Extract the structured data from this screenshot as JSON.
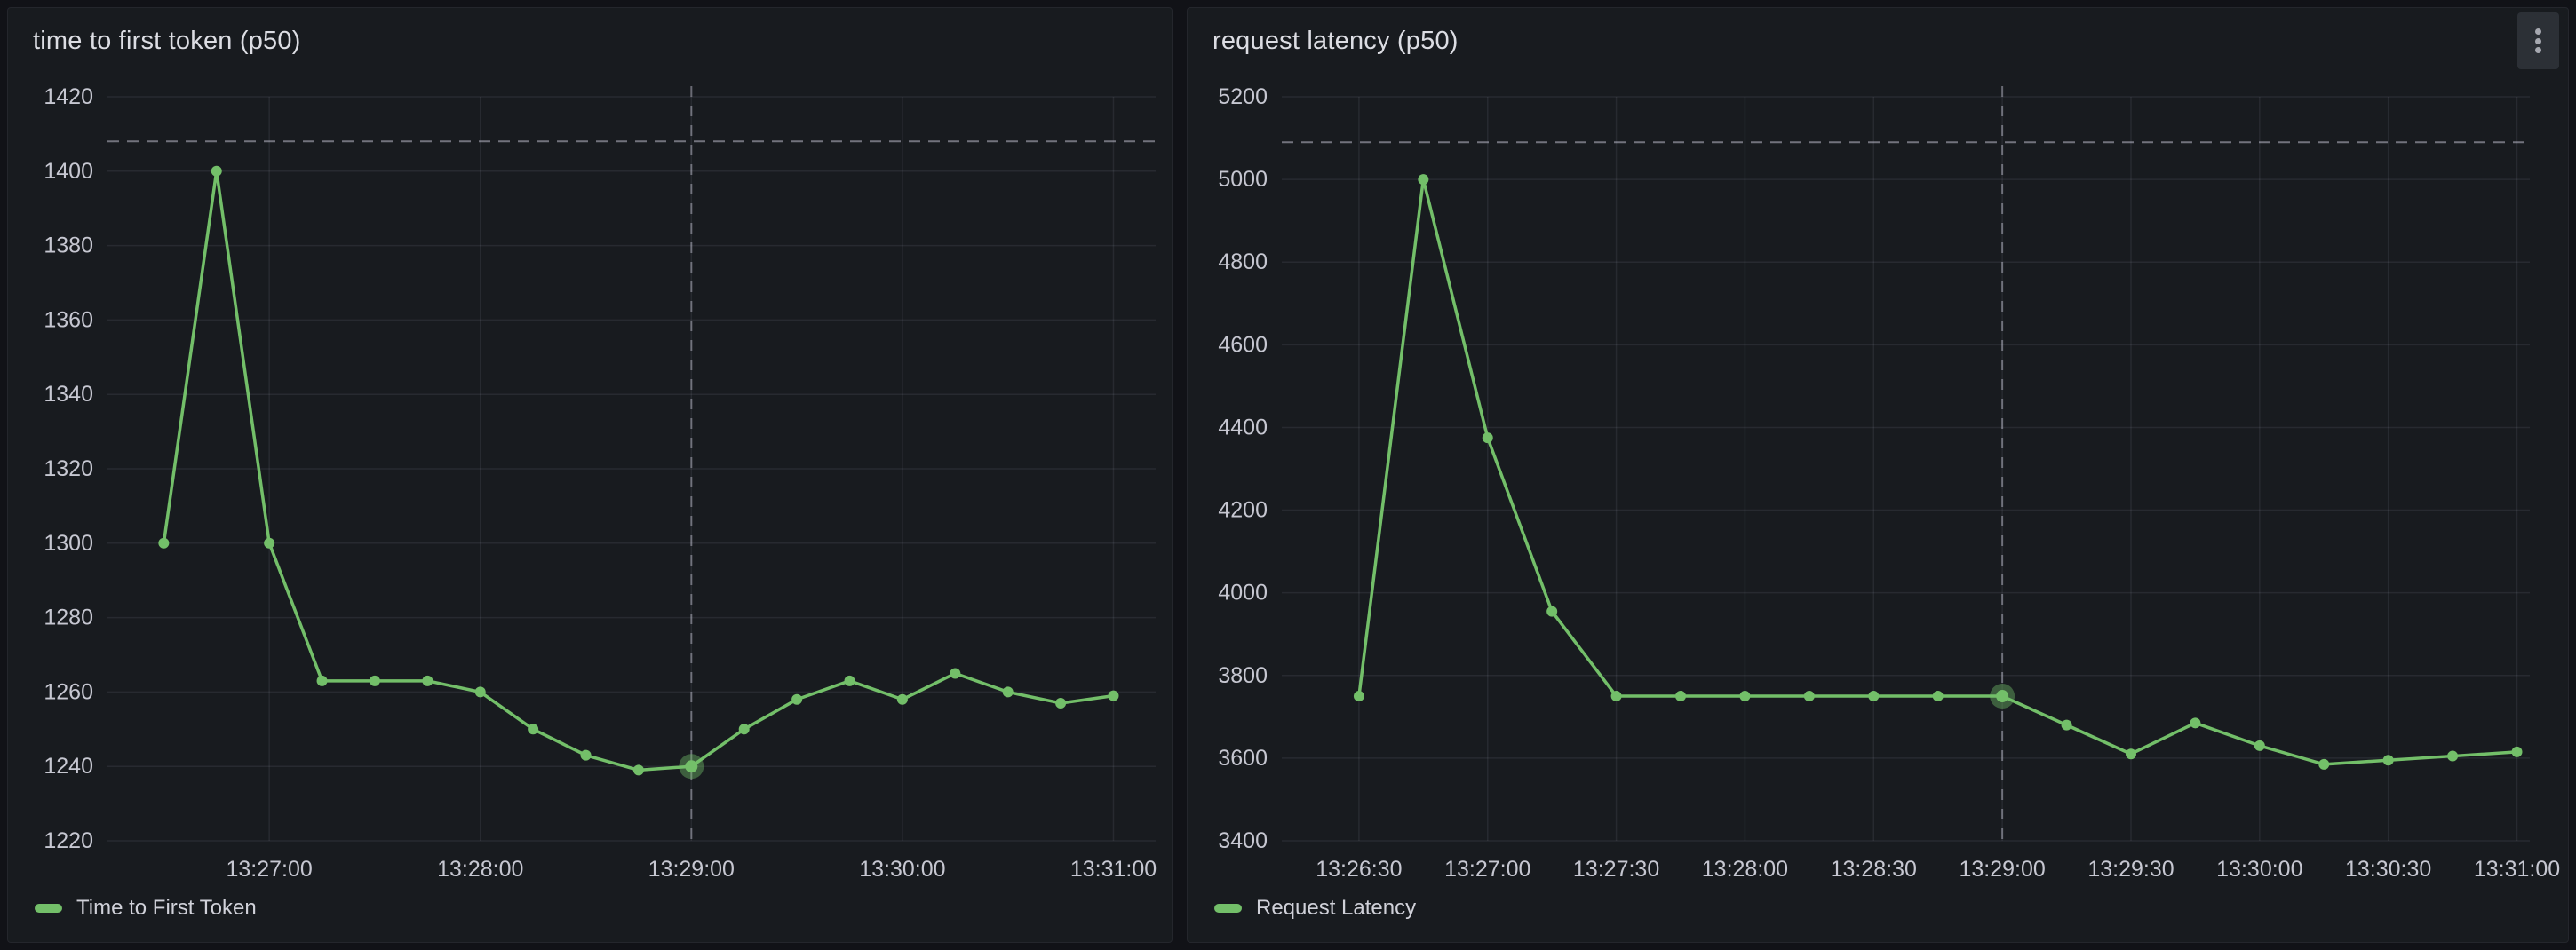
{
  "window": {
    "background": "#111217"
  },
  "panels": [
    {
      "title": "time to first token (p50)",
      "legend_label": "Time to First Token",
      "has_kebab_menu": false
    },
    {
      "title": "request latency (p50)",
      "legend_label": "Request Latency",
      "has_kebab_menu": true
    }
  ],
  "icons": {
    "kebab_menu": "vertical-ellipsis"
  },
  "colors": {
    "series_green": "#73BF69",
    "page_bg": "#111217",
    "panel_bg": "#181b1f",
    "grid_line": "rgba(204,204,220,0.09)",
    "dashed_line": "rgba(204,204,220,0.5)",
    "crosshair_line": "rgba(204,204,220,0.45)",
    "tick_text": "#c6c7d1",
    "title_text": "#dcdde3",
    "legend_text": "#d0d1d9"
  },
  "chart_data": [
    {
      "type": "line",
      "title": "time to first token (p50)",
      "series": [
        {
          "name": "Time to First Token",
          "color": "#73BF69",
          "x": [
            "13:26:30",
            "13:26:45",
            "13:27:00",
            "13:27:15",
            "13:27:30",
            "13:27:45",
            "13:28:00",
            "13:28:15",
            "13:28:30",
            "13:28:45",
            "13:29:00",
            "13:29:15",
            "13:29:30",
            "13:29:45",
            "13:30:00",
            "13:30:15",
            "13:30:30",
            "13:30:45",
            "13:31:00"
          ],
          "values": [
            1300,
            1400,
            1300,
            1263,
            1263,
            1263,
            1260,
            1250,
            1243,
            1239,
            1240,
            1250,
            1258,
            1263,
            1258,
            1265,
            1260,
            1257,
            1259
          ]
        }
      ],
      "x_ticks": [
        "13:27:00",
        "13:28:00",
        "13:29:00",
        "13:30:00",
        "13:31:00"
      ],
      "y_ticks": [
        1420,
        1400,
        1380,
        1360,
        1340,
        1320,
        1300,
        1280,
        1260,
        1240,
        1220
      ],
      "ylim": [
        1220,
        1420
      ],
      "xlim": [
        "13:26:14",
        "13:31:12"
      ],
      "grid": true,
      "legend_position": "bottom-left",
      "dashed_hline_y": 1408,
      "crosshair_time": "13:29:00",
      "highlighted_point": {
        "time": "13:29:00",
        "value": 1240
      }
    },
    {
      "type": "line",
      "title": "request latency (p50)",
      "series": [
        {
          "name": "Request Latency",
          "color": "#73BF69",
          "x": [
            "13:26:30",
            "13:26:45",
            "13:27:00",
            "13:27:15",
            "13:27:30",
            "13:27:45",
            "13:28:00",
            "13:28:15",
            "13:28:30",
            "13:28:45",
            "13:29:00",
            "13:29:15",
            "13:29:30",
            "13:29:45",
            "13:30:00",
            "13:30:15",
            "13:30:30",
            "13:30:45",
            "13:31:00"
          ],
          "values": [
            3750,
            5000,
            4375,
            3955,
            3750,
            3750,
            3750,
            3750,
            3750,
            3750,
            3750,
            3680,
            3610,
            3685,
            3630,
            3585,
            3595,
            3605,
            3615
          ]
        }
      ],
      "x_ticks": [
        "13:26:30",
        "13:27:00",
        "13:27:30",
        "13:28:00",
        "13:28:30",
        "13:29:00",
        "13:29:30",
        "13:30:00",
        "13:30:30",
        "13:31:00"
      ],
      "y_ticks": [
        5200,
        5000,
        4800,
        4600,
        4400,
        4200,
        4000,
        3800,
        3600,
        3400
      ],
      "ylim": [
        3400,
        5200
      ],
      "xlim": [
        "13:26:12",
        "13:31:03"
      ],
      "grid": true,
      "legend_position": "bottom-left",
      "dashed_hline_y": 5090,
      "crosshair_time": "13:29:00",
      "highlighted_point": {
        "time": "13:29:00",
        "value": 3750
      }
    }
  ]
}
